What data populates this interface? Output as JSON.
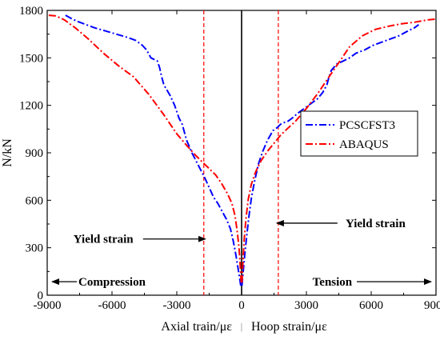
{
  "chart_data": {
    "type": "line",
    "x_axis": {
      "ticks": [
        -9000,
        -6000,
        -3000,
        0,
        3000,
        6000,
        9000
      ],
      "tick_labels": [
        "-9000",
        "-6000",
        "-3000",
        "0",
        "3000",
        "6000",
        "9000"
      ],
      "range": [
        -9000,
        9000
      ],
      "label_left": "Axial train/με",
      "label_separator": "|",
      "label_right": "Hoop strain/με"
    },
    "y_axis": {
      "ticks": [
        0,
        300,
        600,
        900,
        1200,
        1500,
        1800
      ],
      "tick_labels": [
        "0",
        "300",
        "600",
        "900",
        "1200",
        "1500",
        "1800"
      ],
      "range": [
        0,
        1800
      ],
      "label": "N/kN"
    },
    "grid": false,
    "legend": {
      "placement": "right-middle",
      "boxed": true
    },
    "series": [
      {
        "name": "PCSCFST3",
        "color": "#0000ff",
        "dash": "dash-dot",
        "branches": [
          {
            "x": [
              -40,
              -80,
              -150,
              -260,
              -380,
              -520,
              -700,
              -900,
              -1100,
              -1300,
              -1500,
              -1700,
              -2000,
              -2300,
              -2550,
              -2750,
              -2900,
              -3100,
              -3300,
              -3600,
              -3700,
              -3800,
              -3900,
              -4050,
              -4200,
              -4400,
              -4600,
              -4900,
              -5300,
              -5800,
              -6300,
              -6800,
              -7200,
              -7600,
              -7900,
              -8100,
              -8200
            ],
            "y": [
              60,
              100,
              160,
              250,
              340,
              420,
              480,
              530,
              580,
              620,
              680,
              740,
              820,
              900,
              980,
              1080,
              1120,
              1200,
              1260,
              1330,
              1380,
              1440,
              1480,
              1490,
              1500,
              1550,
              1580,
              1610,
              1630,
              1650,
              1670,
              1690,
              1710,
              1730,
              1750,
              1765,
              1775
            ]
          },
          {
            "x": [
              20,
              40,
              80,
              150,
              240,
              340,
              460,
              600,
              780,
              980,
              1200,
              1450,
              1650,
              1800,
              1950,
              2150,
              2350,
              2600,
              2900,
              3200,
              3500,
              3750,
              3950,
              4050,
              4150,
              4400,
              4700,
              5000,
              5300,
              5700,
              6100,
              6500,
              6900,
              7300,
              7700,
              8000,
              8200
            ],
            "y": [
              60,
              100,
              160,
              260,
              380,
              500,
              620,
              720,
              830,
              910,
              980,
              1040,
              1060,
              1080,
              1090,
              1100,
              1120,
              1150,
              1180,
              1210,
              1240,
              1280,
              1330,
              1380,
              1420,
              1460,
              1480,
              1500,
              1530,
              1550,
              1580,
              1600,
              1620,
              1640,
              1670,
              1690,
              1710
            ]
          }
        ]
      },
      {
        "name": "ABAQUS",
        "color": "#ff0000",
        "dash": "dash-dot",
        "branches": [
          {
            "x": [
              -20,
              -60,
              -120,
              -200,
              -300,
              -450,
              -650,
              -900,
              -1200,
              -1500,
              -1800,
              -2100,
              -2500,
              -3000,
              -3600,
              -4300,
              -5000,
              -5700,
              -6400,
              -7100,
              -7700,
              -8200,
              -8600,
              -9000
            ],
            "y": [
              80,
              180,
              300,
              400,
              500,
              580,
              640,
              700,
              760,
              800,
              840,
              880,
              940,
              1020,
              1140,
              1270,
              1380,
              1450,
              1530,
              1620,
              1690,
              1740,
              1765,
              1770
            ]
          },
          {
            "x": [
              20,
              60,
              120,
              200,
              300,
              450,
              650,
              900,
              1200,
              1500,
              1800,
              2100,
              2500,
              3000,
              3500,
              4000,
              4500,
              5000,
              5600,
              6200,
              6800,
              7400,
              8000,
              8600,
              9000
            ],
            "y": [
              80,
              200,
              350,
              480,
              600,
              700,
              780,
              850,
              910,
              960,
              1010,
              1050,
              1100,
              1180,
              1270,
              1370,
              1470,
              1570,
              1640,
              1680,
              1700,
              1715,
              1725,
              1740,
              1745
            ]
          }
        ]
      }
    ],
    "reference_lines": {
      "vertical_solid_x": 0,
      "yield_dashed_x": [
        -1750,
        1700
      ],
      "yield_color": "#ff0000"
    },
    "annotations": [
      {
        "text": "Yield strain",
        "x": -6400,
        "y": 330,
        "arrow_to_x": -1750
      },
      {
        "text": "Yield strain",
        "x": 6200,
        "y": 430,
        "arrow_to_x": 1700
      },
      {
        "text": "Compression",
        "x": -6000,
        "y": 60,
        "arrow_to_x": -9000
      },
      {
        "text": "Tension",
        "x": 4200,
        "y": 60,
        "arrow_to_x": 9000
      }
    ]
  }
}
